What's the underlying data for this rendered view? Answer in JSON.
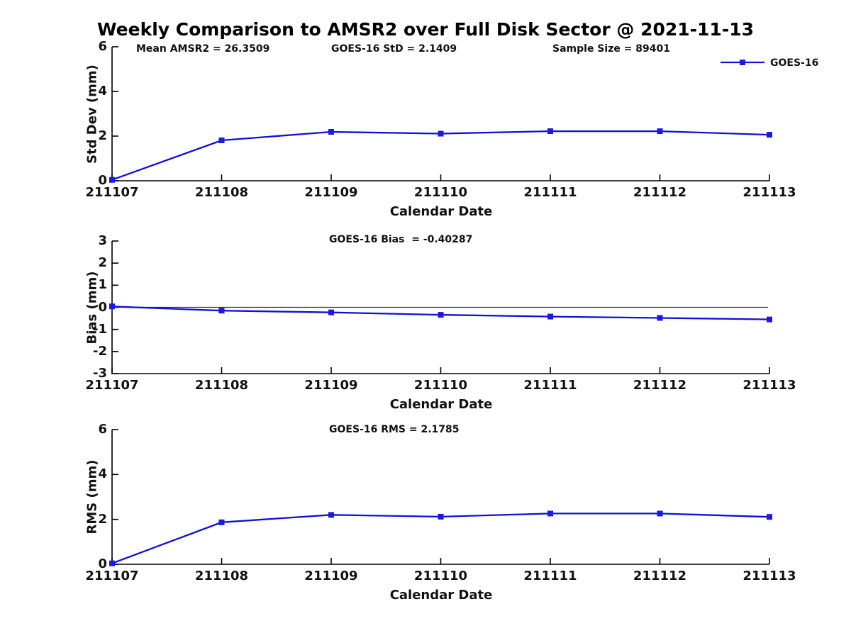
{
  "title": "Weekly Comparison to AMSR2 over Full Disk Sector @ 2021-11-13",
  "legend": {
    "label": "GOES-16",
    "position": "top-right"
  },
  "colors": {
    "line": "#1010d8",
    "marker": "#1a1ae0",
    "axis": "#000000",
    "zero_line": "#333333"
  },
  "chart_data": [
    {
      "type": "line",
      "xlabel": "Calendar Date",
      "ylabel": "Std Dev (mm)",
      "categories": [
        "211107",
        "211108",
        "211109",
        "211110",
        "211111",
        "211112",
        "211113"
      ],
      "series": [
        {
          "name": "GOES-16",
          "values": [
            0.04,
            1.81,
            2.19,
            2.11,
            2.22,
            2.22,
            2.06
          ]
        }
      ],
      "ylim": [
        0,
        6
      ],
      "yticks": [
        0,
        2,
        4,
        6
      ],
      "grid": false,
      "legend_position": "top-right",
      "annotations": [
        "Mean AMSR2 = 26.3509",
        "GOES-16 StD = 2.1409",
        "Sample Size = 89401"
      ]
    },
    {
      "type": "line",
      "xlabel": "Calendar Date",
      "ylabel": "Bias (mm)",
      "categories": [
        "211107",
        "211108",
        "211109",
        "211110",
        "211111",
        "211112",
        "211113"
      ],
      "series": [
        {
          "name": "GOES-16",
          "values": [
            0.04,
            -0.15,
            -0.23,
            -0.34,
            -0.42,
            -0.48,
            -0.55
          ]
        }
      ],
      "ylim": [
        -3,
        3
      ],
      "yticks": [
        -3,
        -2,
        -1,
        0,
        1,
        2,
        3
      ],
      "zero_line": true,
      "grid": false,
      "annotations": [
        "GOES-16 Bias  = -0.40287"
      ]
    },
    {
      "type": "line",
      "xlabel": "Calendar Date",
      "ylabel": "RMS (mm)",
      "categories": [
        "211107",
        "211108",
        "211109",
        "211110",
        "211111",
        "211112",
        "211113"
      ],
      "series": [
        {
          "name": "GOES-16",
          "values": [
            0.04,
            1.87,
            2.2,
            2.12,
            2.26,
            2.26,
            2.11
          ]
        }
      ],
      "ylim": [
        0,
        6
      ],
      "yticks": [
        0,
        2,
        4,
        6
      ],
      "grid": false,
      "annotations": [
        "GOES-16 RMS = 2.1785"
      ]
    }
  ]
}
